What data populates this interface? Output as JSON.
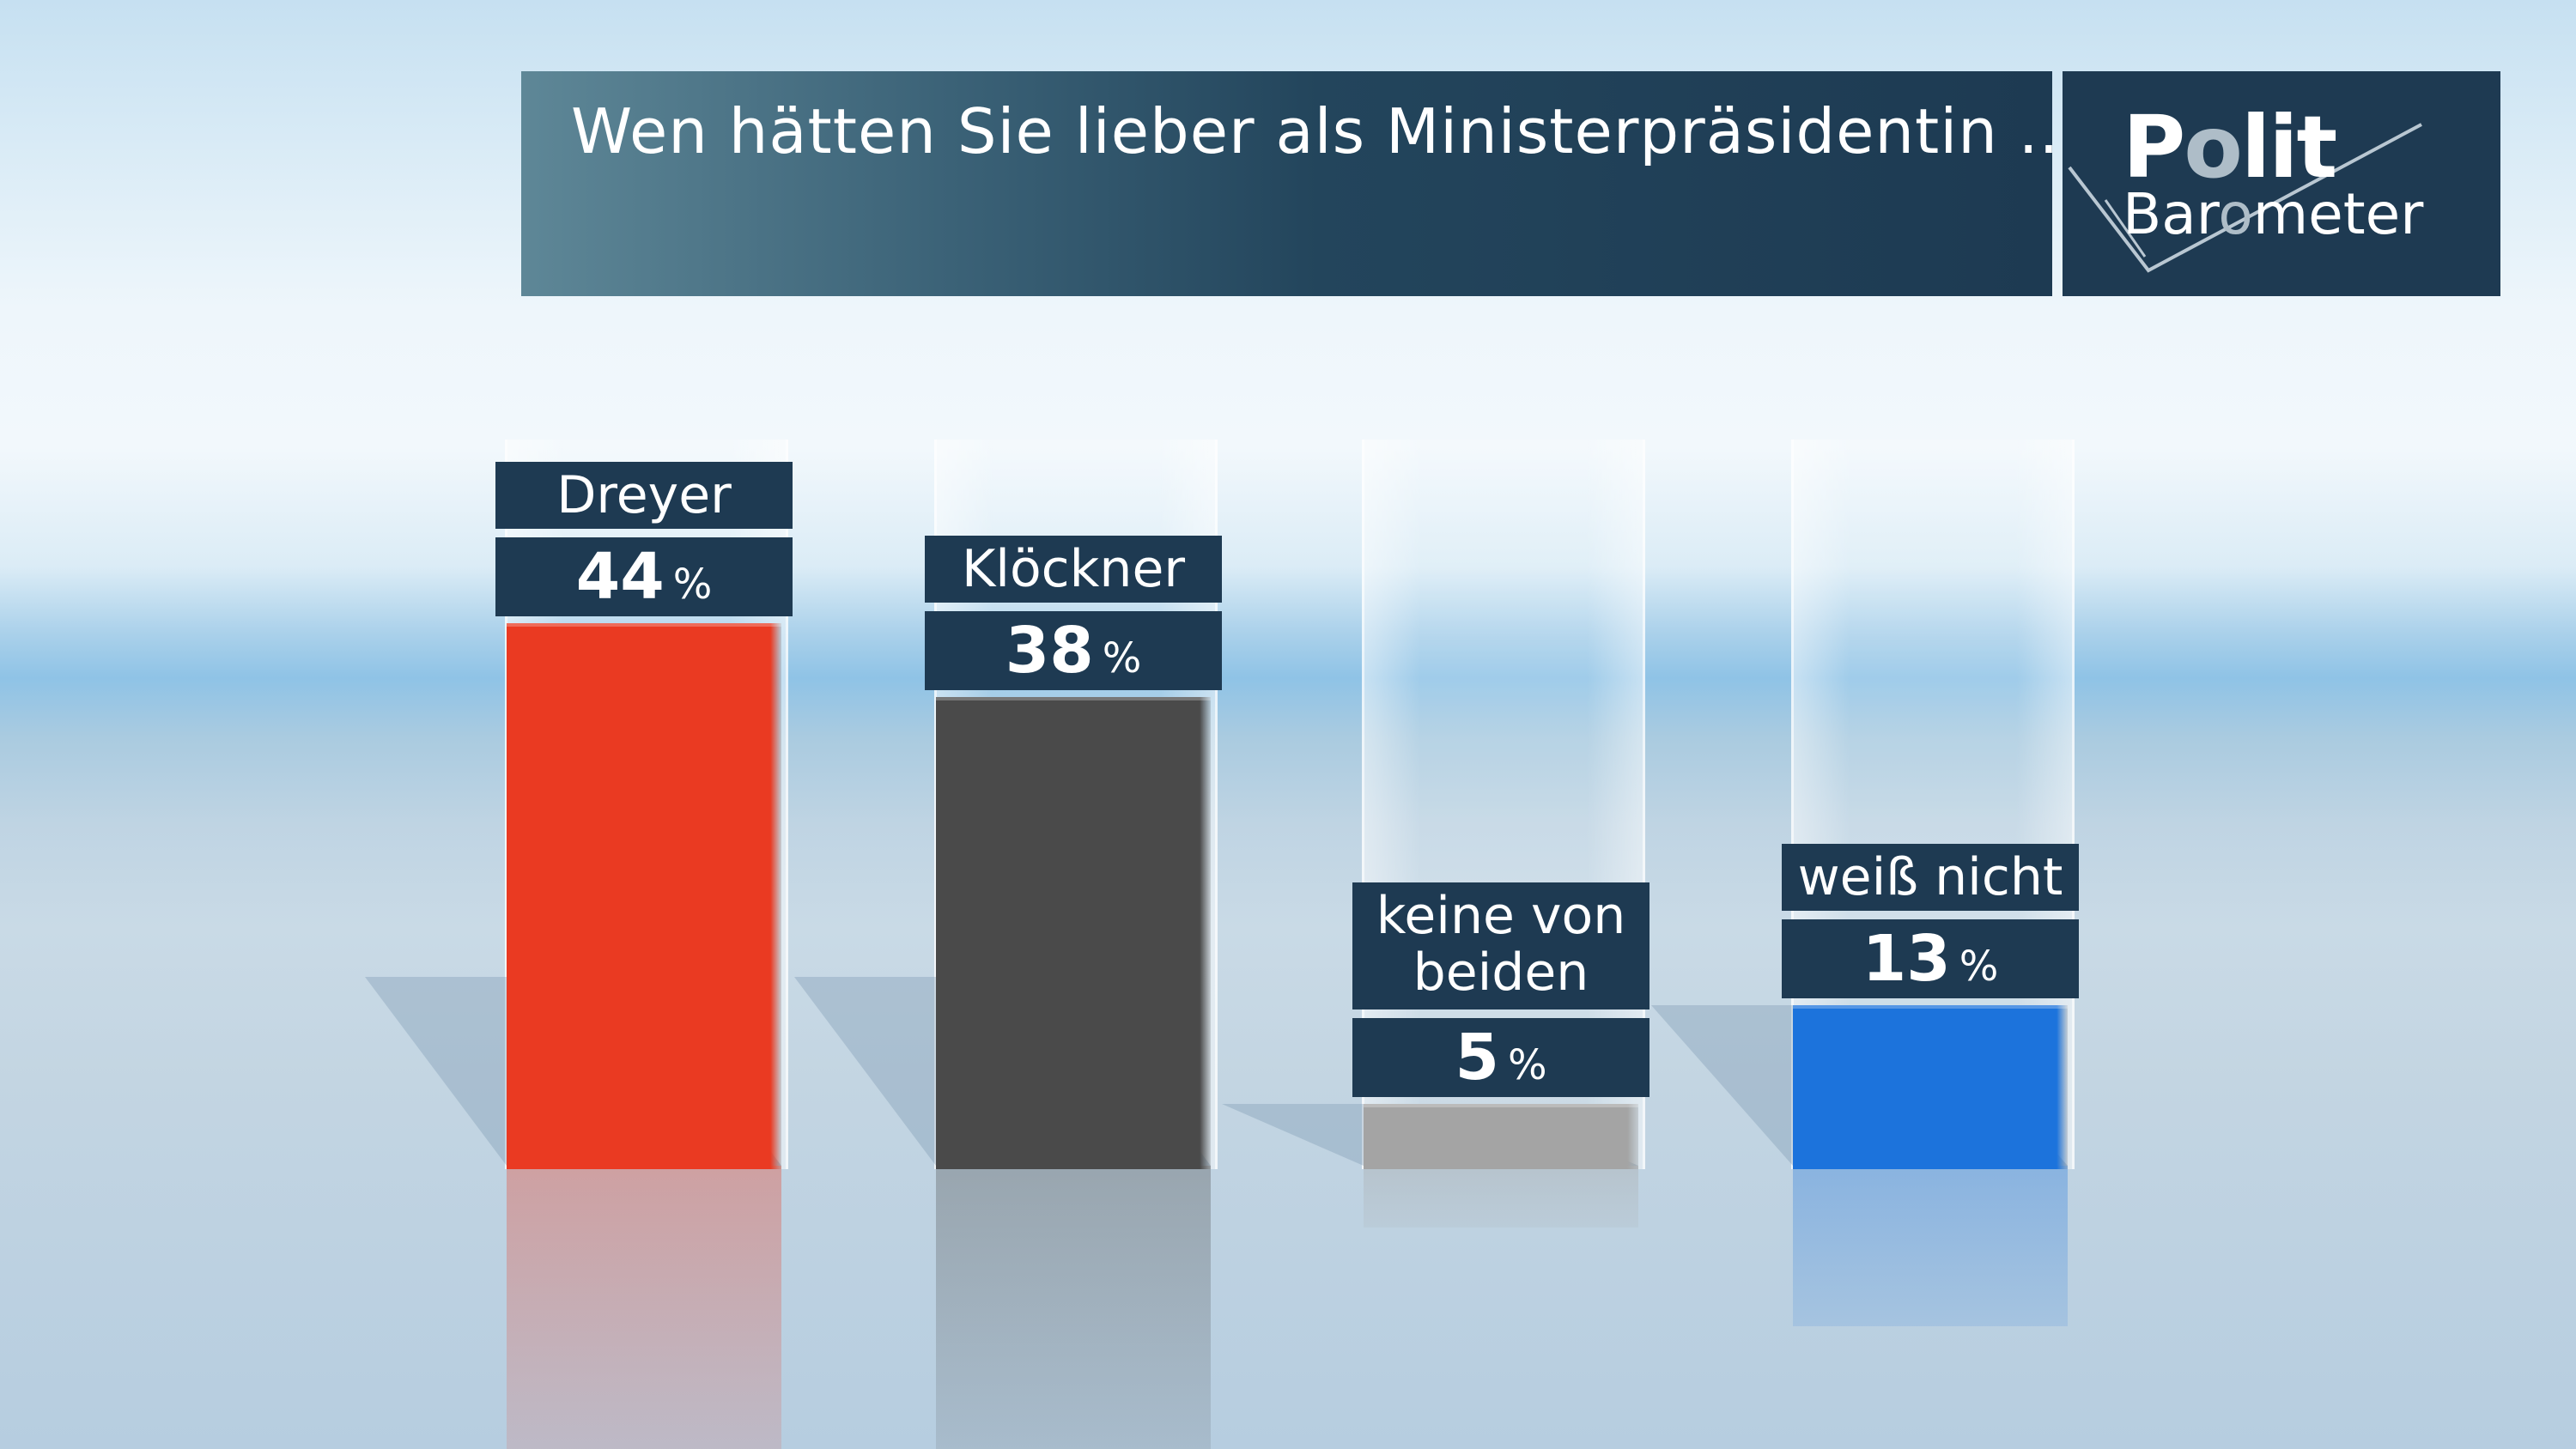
{
  "title": "Wen hätten Sie lieber als Ministerpräsidentin ...",
  "logo": {
    "line1_a": "P",
    "line1_o": "o",
    "line1_b": "lit",
    "line2_a": "Bar",
    "line2_o": "o",
    "line2_b": "meter"
  },
  "percent_sign": "%",
  "colors": {
    "accent": "#1e3a52"
  },
  "chart_data": {
    "type": "bar",
    "title": "Wen hätten Sie lieber als Ministerpräsidentin ...",
    "categories": [
      "Dreyer",
      "Klöckner",
      "keine von\nbeiden",
      "weiß nicht"
    ],
    "values": [
      44,
      38,
      5,
      13
    ],
    "unit": "%",
    "colors": [
      "#ea3a22",
      "#4a4a4a",
      "#a4a4a4",
      "#1c73dc"
    ],
    "ylim": [
      0,
      44
    ],
    "grid": false,
    "legend": "none"
  }
}
